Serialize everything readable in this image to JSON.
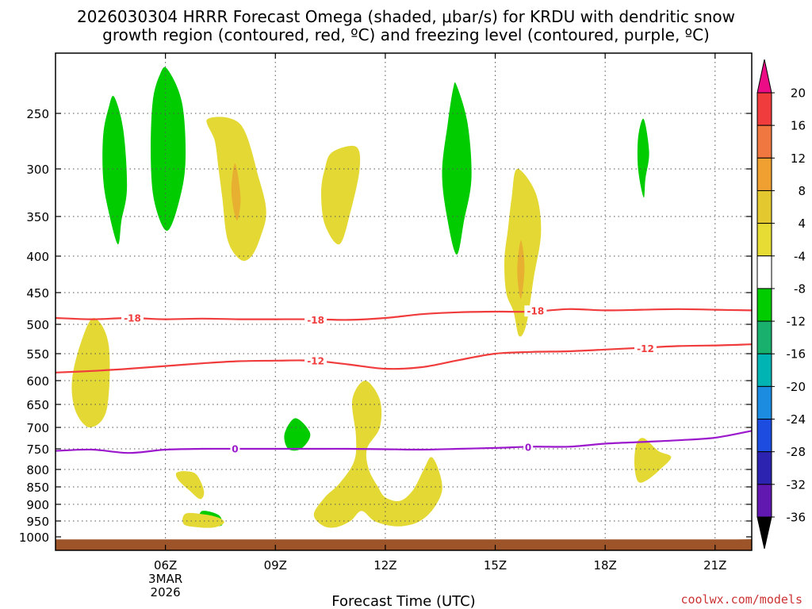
{
  "title": {
    "line1": "2026030304 HRRR Forecast Omega (shaded, μbar/s) for KRDU with dendritic snow",
    "line2": "growth region (contoured, red, ºC) and freezing level (contoured, purple, ºC)"
  },
  "xlabel": "Forecast Time (UTC)",
  "credit": "coolwx.com/models",
  "chart_data": {
    "type": "time-height cross section",
    "x_unit": "hours UTC since 2026-03-03 03Z",
    "x_range": [
      3,
      22
    ],
    "x_ticks": [
      {
        "x": 6,
        "lines": [
          "06Z",
          "3MAR",
          "2026"
        ]
      },
      {
        "x": 9,
        "lines": [
          "09Z"
        ]
      },
      {
        "x": 12,
        "lines": [
          "12Z"
        ]
      },
      {
        "x": 15,
        "lines": [
          "15Z"
        ]
      },
      {
        "x": 18,
        "lines": [
          "18Z"
        ]
      },
      {
        "x": 21,
        "lines": [
          "21Z"
        ]
      }
    ],
    "y_unit": "hPa",
    "y_ticks": [
      250,
      300,
      350,
      400,
      450,
      500,
      550,
      600,
      650,
      700,
      750,
      800,
      850,
      900,
      950,
      1000
    ],
    "colorbar": {
      "labels": [
        20,
        16,
        12,
        8,
        4,
        -4,
        -8,
        -12,
        -16,
        -20,
        -24,
        -28,
        -32,
        -36
      ],
      "colors": [
        "#ec0c86",
        "#f03c3c",
        "#f07840",
        "#f0a030",
        "#e4c830",
        "#e6dc34",
        "#ffffff",
        "#00cc00",
        "#18b06c",
        "#00b4b4",
        "#1c8ce0",
        "#1c4ce0",
        "#2c24b0",
        "#6018b0",
        "#9c10c4",
        "#a0a0a0",
        "#000000"
      ]
    },
    "contours": [
      {
        "name": "dgz-upper",
        "level": "-18",
        "color": "#f03c3c",
        "points": [
          [
            3,
            490
          ],
          [
            4,
            492
          ],
          [
            5,
            490
          ],
          [
            6,
            492
          ],
          [
            7,
            491
          ],
          [
            8,
            492
          ],
          [
            9,
            492
          ],
          [
            10,
            492
          ],
          [
            11,
            493
          ],
          [
            12,
            490
          ],
          [
            13,
            484
          ],
          [
            14,
            481
          ],
          [
            15,
            480
          ],
          [
            16,
            480
          ],
          [
            17,
            476
          ],
          [
            18,
            478
          ],
          [
            19,
            477
          ],
          [
            20,
            476
          ],
          [
            21,
            477
          ],
          [
            22,
            478
          ]
        ],
        "labels": [
          [
            5.1,
            490
          ],
          [
            10.1,
            493
          ],
          [
            16.1,
            479
          ]
        ]
      },
      {
        "name": "dgz-lower",
        "level": "-12",
        "color": "#f03c3c",
        "points": [
          [
            3,
            585
          ],
          [
            4,
            582
          ],
          [
            5,
            578
          ],
          [
            6,
            573
          ],
          [
            7,
            568
          ],
          [
            8,
            564
          ],
          [
            9,
            563
          ],
          [
            10,
            563
          ],
          [
            11,
            570
          ],
          [
            12,
            578
          ],
          [
            13,
            575
          ],
          [
            14,
            562
          ],
          [
            15,
            550
          ],
          [
            16,
            547
          ],
          [
            17,
            546
          ],
          [
            18,
            543
          ],
          [
            19,
            540
          ],
          [
            20,
            537
          ],
          [
            21,
            536
          ],
          [
            22,
            534
          ]
        ],
        "labels": [
          [
            10.1,
            563
          ],
          [
            19.1,
            541
          ]
        ]
      },
      {
        "name": "freezing-level",
        "level": "0",
        "color": "#9b18cc",
        "points": [
          [
            3,
            755
          ],
          [
            4,
            752
          ],
          [
            5,
            760
          ],
          [
            6,
            752
          ],
          [
            7,
            750
          ],
          [
            8,
            750
          ],
          [
            9,
            750
          ],
          [
            10,
            750
          ],
          [
            11,
            750
          ],
          [
            12,
            751
          ],
          [
            13,
            752
          ],
          [
            14,
            750
          ],
          [
            15,
            748
          ],
          [
            16,
            745
          ],
          [
            17,
            745
          ],
          [
            18,
            738
          ],
          [
            19,
            734
          ],
          [
            20,
            730
          ],
          [
            21,
            724
          ],
          [
            22,
            708
          ]
        ],
        "labels": [
          [
            7.9,
            750
          ],
          [
            15.9,
            746
          ]
        ]
      }
    ],
    "omega_regions": [
      {
        "name": "ascent-4-8",
        "color": "#00cc00",
        "outline": [
          [
            4.6,
            235
          ],
          [
            4.85,
            265
          ],
          [
            4.95,
            320
          ],
          [
            4.8,
            355
          ],
          [
            4.7,
            385
          ],
          [
            4.45,
            345
          ],
          [
            4.3,
            310
          ],
          [
            4.3,
            270
          ],
          [
            4.45,
            245
          ]
        ]
      },
      {
        "name": "ascent-4-8",
        "color": "#00cc00",
        "outline": [
          [
            6.05,
            210
          ],
          [
            6.45,
            240
          ],
          [
            6.55,
            290
          ],
          [
            6.4,
            330
          ],
          [
            6.05,
            368
          ],
          [
            5.7,
            335
          ],
          [
            5.6,
            290
          ],
          [
            5.65,
            240
          ],
          [
            5.85,
            215
          ]
        ]
      },
      {
        "name": "ascent-4-8",
        "color": "#00cc00",
        "outline": [
          [
            13.95,
            225
          ],
          [
            14.25,
            260
          ],
          [
            14.35,
            310
          ],
          [
            14.15,
            355
          ],
          [
            13.95,
            398
          ],
          [
            13.7,
            355
          ],
          [
            13.55,
            305
          ],
          [
            13.7,
            260
          ],
          [
            13.85,
            228
          ]
        ]
      },
      {
        "name": "ascent-4-8",
        "color": "#00cc00",
        "outline": [
          [
            19.05,
            255
          ],
          [
            19.2,
            285
          ],
          [
            19.1,
            310
          ],
          [
            19.05,
            330
          ],
          [
            18.9,
            300
          ],
          [
            18.9,
            272
          ]
        ]
      },
      {
        "name": "ascent-4-8",
        "color": "#00cc00",
        "outline": [
          [
            9.55,
            680
          ],
          [
            9.95,
            715
          ],
          [
            9.7,
            750
          ],
          [
            9.35,
            750
          ],
          [
            9.25,
            715
          ]
        ]
      },
      {
        "name": "ascent-4-8",
        "color": "#00cc00",
        "outline": [
          [
            7.0,
            920
          ],
          [
            7.45,
            932
          ],
          [
            7.55,
            962
          ],
          [
            7.3,
            965
          ],
          [
            6.95,
            950
          ]
        ]
      },
      {
        "name": "sinking-4-8",
        "color": "#e4d934",
        "outline": [
          [
            7.15,
            255
          ],
          [
            8.05,
            260
          ],
          [
            8.55,
            310
          ],
          [
            8.75,
            345
          ],
          [
            8.6,
            375
          ],
          [
            8.35,
            400
          ],
          [
            8.05,
            405
          ],
          [
            7.7,
            380
          ],
          [
            7.55,
            330
          ],
          [
            7.45,
            300
          ],
          [
            7.35,
            275
          ]
        ]
      },
      {
        "name": "sinking-8-12",
        "color": "#e8b030",
        "outline": [
          [
            7.9,
            295
          ],
          [
            8.05,
            330
          ],
          [
            7.95,
            355
          ],
          [
            7.8,
            325
          ]
        ]
      },
      {
        "name": "sinking-4-8",
        "color": "#e4d934",
        "outline": [
          [
            10.55,
            285
          ],
          [
            11.2,
            280
          ],
          [
            11.3,
            300
          ],
          [
            11.05,
            345
          ],
          [
            10.75,
            385
          ],
          [
            10.35,
            360
          ],
          [
            10.25,
            325
          ],
          [
            10.35,
            300
          ]
        ]
      },
      {
        "name": "sinking-4-8",
        "color": "#e4d934",
        "outline": [
          [
            15.6,
            300
          ],
          [
            16.1,
            325
          ],
          [
            16.25,
            370
          ],
          [
            16.05,
            430
          ],
          [
            15.85,
            500
          ],
          [
            15.65,
            520
          ],
          [
            15.5,
            480
          ],
          [
            15.3,
            450
          ],
          [
            15.25,
            405
          ],
          [
            15.35,
            365
          ],
          [
            15.45,
            330
          ]
        ]
      },
      {
        "name": "sinking-8-12",
        "color": "#e8b030",
        "outline": [
          [
            15.7,
            380
          ],
          [
            15.8,
            415
          ],
          [
            15.7,
            460
          ],
          [
            15.6,
            420
          ]
        ]
      },
      {
        "name": "sinking-4-8",
        "color": "#e4d934",
        "outline": [
          [
            4.05,
            490
          ],
          [
            4.45,
            535
          ],
          [
            4.4,
            660
          ],
          [
            3.95,
            700
          ],
          [
            3.55,
            665
          ],
          [
            3.45,
            600
          ],
          [
            3.7,
            530
          ]
        ]
      },
      {
        "name": "sinking-4-8",
        "color": "#e4d934",
        "outline": [
          [
            11.45,
            600
          ],
          [
            11.85,
            640
          ],
          [
            11.85,
            700
          ],
          [
            11.5,
            750
          ],
          [
            11.55,
            800
          ],
          [
            11.8,
            850
          ],
          [
            12.0,
            880
          ],
          [
            12.4,
            890
          ],
          [
            12.75,
            860
          ],
          [
            13.05,
            800
          ],
          [
            13.25,
            770
          ],
          [
            13.45,
            800
          ],
          [
            13.55,
            860
          ],
          [
            13.3,
            915
          ],
          [
            12.95,
            950
          ],
          [
            12.55,
            965
          ],
          [
            12.15,
            965
          ],
          [
            11.7,
            950
          ],
          [
            11.35,
            920
          ],
          [
            11.05,
            950
          ],
          [
            10.65,
            970
          ],
          [
            10.3,
            965
          ],
          [
            10.05,
            930
          ],
          [
            10.35,
            880
          ],
          [
            10.75,
            840
          ],
          [
            11.15,
            780
          ],
          [
            11.2,
            720
          ],
          [
            11.1,
            640
          ]
        ]
      },
      {
        "name": "sinking-4-8",
        "color": "#e4d934",
        "outline": [
          [
            19.05,
            725
          ],
          [
            19.45,
            755
          ],
          [
            19.8,
            770
          ],
          [
            19.5,
            800
          ],
          [
            19.15,
            830
          ],
          [
            18.9,
            835
          ],
          [
            18.8,
            790
          ],
          [
            18.85,
            740
          ]
        ]
      },
      {
        "name": "sinking-4-8",
        "color": "#e4d934",
        "outline": [
          [
            6.55,
            805
          ],
          [
            6.85,
            815
          ],
          [
            7.05,
            862
          ],
          [
            6.95,
            885
          ],
          [
            6.65,
            860
          ],
          [
            6.35,
            830
          ],
          [
            6.3,
            810
          ]
        ]
      },
      {
        "name": "sinking-4-8",
        "color": "#e4d934",
        "outline": [
          [
            6.55,
            928
          ],
          [
            7.05,
            930
          ],
          [
            7.45,
            940
          ],
          [
            7.6,
            955
          ],
          [
            7.35,
            970
          ],
          [
            6.9,
            970
          ],
          [
            6.5,
            960
          ]
        ]
      }
    ],
    "terrain": {
      "name": "surface",
      "color": "#9c5428",
      "top_pressure": 1010
    }
  }
}
